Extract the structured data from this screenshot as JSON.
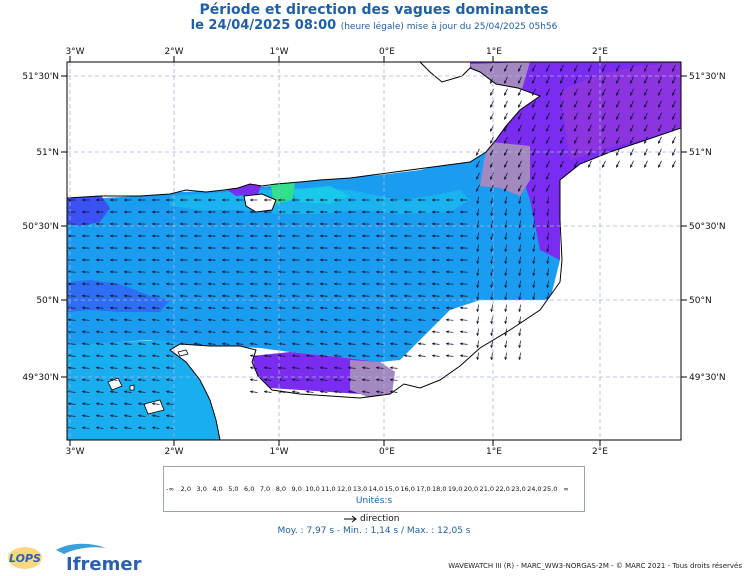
{
  "title": "Période et direction des vagues dominantes",
  "subtitle_main": "le 24/04/2025 08:00",
  "subtitle_note": "(heure légale) mise à jour du 25/04/2025 05h56",
  "lon_labels": [
    "3°W",
    "2°W",
    "1°W",
    "0°E",
    "1°E",
    "2°E"
  ],
  "lat_labels": [
    "51°30'N",
    "51°N",
    "50°30'N",
    "50°N",
    "49°30'N"
  ],
  "colorbar": {
    "labels": [
      "-∞",
      "2,0",
      "3,0",
      "4,0",
      "5,0",
      "6,0",
      "7,0",
      "8,0",
      "9,0",
      "10,0",
      "11,0",
      "12,0",
      "13,0",
      "14,0",
      "15,0",
      "16,0",
      "17,0",
      "18,0",
      "19,0",
      "20,0",
      "21,0",
      "22,0",
      "23,0",
      "24,0",
      "25,0",
      "∞"
    ],
    "colors": [
      "#b08fc0",
      "#a488c0",
      "#8c34e0",
      "#7a2cf0",
      "#5a3af5",
      "#3a52f4",
      "#2d6ef2",
      "#2196f0",
      "#19aef0",
      "#1ac8ea",
      "#22dccc",
      "#30e08c",
      "#44e04e",
      "#8ee030",
      "#c8e428",
      "#f0e420",
      "#f4c41a",
      "#f4a818",
      "#f08a18",
      "#ec6c1a",
      "#e8501e",
      "#e43a1e",
      "#e02620",
      "#d81420",
      "#c80e18"
    ]
  },
  "unit_label": "Unités",
  "direction_label": "direction",
  "stats": {
    "text": "Moy. : 7,97 s   -   Min. : 1,14 s / Max. : 12,05 s"
  },
  "credits": "WAVEWATCH III (R) - MARC_WW3-NORGAS-2M - © MARC 2021 - Tous droits réservés",
  "logos": {
    "lops": "LOPS",
    "ifremer": "Ifremer"
  }
}
